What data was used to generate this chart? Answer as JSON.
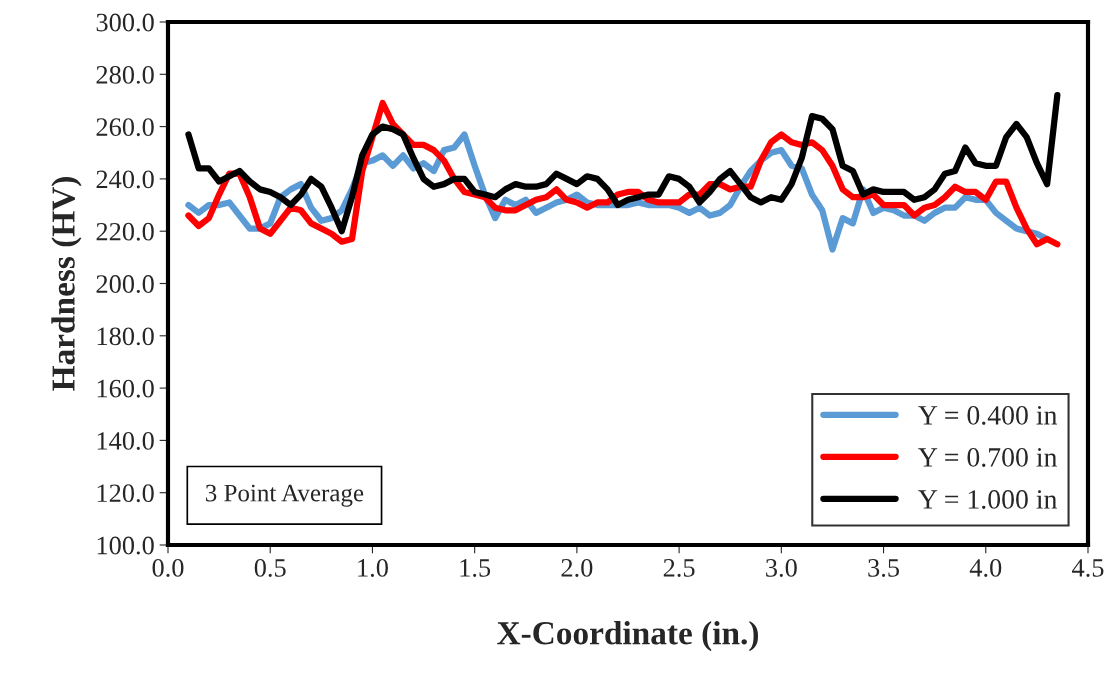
{
  "chart_data": {
    "type": "line",
    "xlabel": "X-Coordinate (in.)",
    "ylabel": "Hardness (HV)",
    "x": [
      0.1,
      0.15,
      0.2,
      0.25,
      0.3,
      0.35,
      0.4,
      0.45,
      0.5,
      0.55,
      0.6,
      0.65,
      0.7,
      0.75,
      0.8,
      0.85,
      0.9,
      0.95,
      1.0,
      1.05,
      1.1,
      1.15,
      1.2,
      1.25,
      1.3,
      1.35,
      1.4,
      1.45,
      1.5,
      1.55,
      1.6,
      1.65,
      1.7,
      1.75,
      1.8,
      1.85,
      1.9,
      1.95,
      2.0,
      2.05,
      2.1,
      2.15,
      2.2,
      2.25,
      2.3,
      2.35,
      2.4,
      2.45,
      2.5,
      2.55,
      2.6,
      2.65,
      2.7,
      2.75,
      2.8,
      2.85,
      2.9,
      2.95,
      3.0,
      3.05,
      3.1,
      3.15,
      3.2,
      3.25,
      3.3,
      3.35,
      3.4,
      3.45,
      3.5,
      3.55,
      3.6,
      3.65,
      3.7,
      3.75,
      3.8,
      3.85,
      3.9,
      3.95,
      4.0,
      4.05,
      4.1,
      4.15,
      4.2,
      4.25,
      4.3,
      4.35
    ],
    "series": [
      {
        "name": "Y = 0.400 in",
        "color": "#5b9bd5",
        "values": [
          230,
          227,
          230,
          230,
          231,
          226,
          221,
          221,
          223,
          233,
          236,
          238,
          229,
          224,
          225,
          228,
          236,
          246,
          247,
          249,
          245,
          249,
          244,
          246,
          243,
          251,
          252,
          257,
          245,
          234,
          225,
          232,
          230,
          232,
          227,
          229,
          231,
          232,
          234,
          231,
          230,
          230,
          230,
          230,
          231,
          230,
          230,
          230,
          229,
          227,
          229,
          226,
          227,
          230,
          237,
          243,
          247,
          250,
          251,
          245,
          244,
          234,
          228,
          213,
          225,
          223,
          236,
          227,
          229,
          228,
          226,
          226,
          224,
          227,
          229,
          229,
          233,
          232,
          232,
          227,
          224,
          221,
          220,
          219,
          217,
          null
        ]
      },
      {
        "name": "Y = 0.700 in",
        "color": "#ff0000",
        "values": [
          226,
          222,
          225,
          234,
          242,
          242,
          233,
          221,
          219,
          224,
          229,
          228,
          223,
          221,
          219,
          216,
          217,
          243,
          256,
          269,
          261,
          257,
          253,
          253,
          251,
          247,
          240,
          235,
          234,
          233,
          229,
          228,
          228,
          230,
          232,
          233,
          236,
          232,
          231,
          229,
          231,
          231,
          234,
          235,
          235,
          232,
          231,
          231,
          231,
          234,
          234,
          238,
          238,
          236,
          237,
          237,
          247,
          254,
          257,
          254,
          253,
          254,
          251,
          245,
          236,
          233,
          233,
          234,
          230,
          230,
          230,
          226,
          229,
          230,
          233,
          237,
          235,
          235,
          232,
          239,
          239,
          229,
          221,
          215,
          217,
          215
        ]
      },
      {
        "name": "Y = 1.000 in",
        "color": "#000000",
        "values": [
          257,
          244,
          244,
          239,
          241,
          243,
          239,
          236,
          235,
          233,
          230,
          234,
          240,
          237,
          229,
          220,
          233,
          249,
          257,
          260,
          259,
          257,
          248,
          240,
          237,
          238,
          240,
          240,
          235,
          234,
          233,
          236,
          238,
          237,
          237,
          238,
          242,
          240,
          238,
          241,
          240,
          236,
          230,
          232,
          233,
          234,
          234,
          241,
          240,
          237,
          231,
          235,
          240,
          243,
          238,
          233,
          231,
          233,
          232,
          238,
          248,
          264,
          263,
          259,
          245,
          243,
          234,
          236,
          235,
          235,
          235,
          232,
          233,
          236,
          242,
          243,
          252,
          246,
          245,
          245,
          256,
          261,
          256,
          246,
          238,
          272
        ]
      }
    ],
    "xlim": [
      0.0,
      4.5
    ],
    "xticks": [
      {
        "value": 0.0,
        "label": "0.0"
      },
      {
        "value": 0.5,
        "label": "0.5"
      },
      {
        "value": 1.0,
        "label": "1.0"
      },
      {
        "value": 1.5,
        "label": "1.5"
      },
      {
        "value": 2.0,
        "label": "2.0"
      },
      {
        "value": 2.5,
        "label": "2.5"
      },
      {
        "value": 3.0,
        "label": "3.0"
      },
      {
        "value": 3.5,
        "label": "3.5"
      },
      {
        "value": 4.0,
        "label": "4.0"
      },
      {
        "value": 4.5,
        "label": "4.5"
      }
    ],
    "ylim": [
      100.0,
      300.0
    ],
    "yticks": [
      {
        "value": 100,
        "label": "100.0"
      },
      {
        "value": 120,
        "label": "120.0"
      },
      {
        "value": 140,
        "label": "140.0"
      },
      {
        "value": 160,
        "label": "160.0"
      },
      {
        "value": 180,
        "label": "180.0"
      },
      {
        "value": 200,
        "label": "200.0"
      },
      {
        "value": 220,
        "label": "220.0"
      },
      {
        "value": 240,
        "label": "240.0"
      },
      {
        "value": 260,
        "label": "260.0"
      },
      {
        "value": 280,
        "label": "280.0"
      },
      {
        "value": 300,
        "label": "300.0"
      }
    ],
    "annotations": [
      "3 Point Average"
    ],
    "legend": "bottom right",
    "grid": false,
    "marker": "none",
    "line_style": "solid"
  }
}
